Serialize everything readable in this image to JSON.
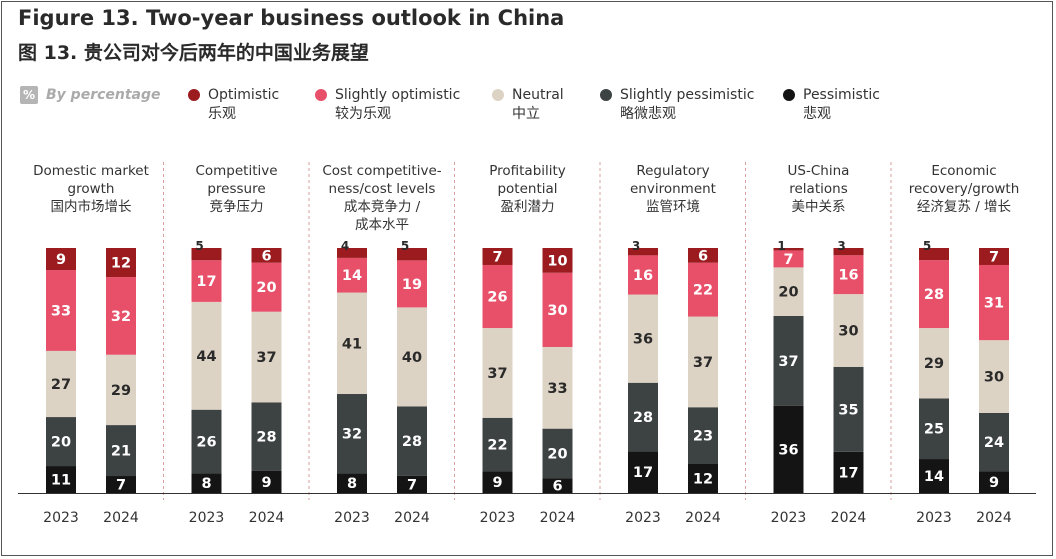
{
  "header": {
    "title": "Figure 13. Two-year business outlook in China",
    "subtitle": "图 13. 贵公司对今后两年的中国业务展望",
    "unit_badge": "%",
    "unit_label": "By percentage"
  },
  "legend": [
    {
      "name": "Optimistic",
      "name_cn": "乐观",
      "color": "#9b1b1f"
    },
    {
      "name": "Slightly optimistic",
      "name_cn": "较为乐观",
      "color": "#e8506a"
    },
    {
      "name": "Neutral",
      "name_cn": "中立",
      "color": "#ddd3c4"
    },
    {
      "name": "Slightly pessimistic",
      "name_cn": "略微悲观",
      "color": "#3d4243"
    },
    {
      "name": "Pessimistic",
      "name_cn": "悲观",
      "color": "#141414"
    }
  ],
  "chart_data": {
    "type": "bar",
    "stacked": true,
    "stack_order_bottom_to_top": [
      "Pessimistic",
      "Slightly pessimistic",
      "Neutral",
      "Slightly optimistic",
      "Optimistic"
    ],
    "groups": [
      {
        "label": [
          "Domestic market",
          "growth",
          "国内市场增长"
        ],
        "bars": [
          {
            "year": "2023",
            "values": {
              "Optimistic": 9,
              "Slightly optimistic": 33,
              "Neutral": 27,
              "Slightly pessimistic": 20,
              "Pessimistic": 11
            }
          },
          {
            "year": "2024",
            "values": {
              "Optimistic": 12,
              "Slightly optimistic": 32,
              "Neutral": 29,
              "Slightly pessimistic": 21,
              "Pessimistic": 7
            }
          }
        ]
      },
      {
        "label": [
          "Competitive",
          "pressure",
          "竞争压力"
        ],
        "bars": [
          {
            "year": "2023",
            "values": {
              "Optimistic": 5,
              "Slightly optimistic": 17,
              "Neutral": 44,
              "Slightly pessimistic": 26,
              "Pessimistic": 8
            }
          },
          {
            "year": "2024",
            "values": {
              "Optimistic": 6,
              "Slightly optimistic": 20,
              "Neutral": 37,
              "Slightly pessimistic": 28,
              "Pessimistic": 9
            }
          }
        ]
      },
      {
        "label": [
          "Cost competitive-",
          "ness/cost levels",
          "成本竞争力 /",
          "成本水平"
        ],
        "bars": [
          {
            "year": "2023",
            "values": {
              "Optimistic": 4,
              "Slightly optimistic": 14,
              "Neutral": 41,
              "Slightly pessimistic": 32,
              "Pessimistic": 8
            }
          },
          {
            "year": "2024",
            "values": {
              "Optimistic": 5,
              "Slightly optimistic": 19,
              "Neutral": 40,
              "Slightly pessimistic": 28,
              "Pessimistic": 7
            }
          }
        ]
      },
      {
        "label": [
          "Profitability",
          "potential",
          "盈利潜力"
        ],
        "bars": [
          {
            "year": "2023",
            "values": {
              "Optimistic": 7,
              "Slightly optimistic": 26,
              "Neutral": 37,
              "Slightly pessimistic": 22,
              "Pessimistic": 9
            }
          },
          {
            "year": "2024",
            "values": {
              "Optimistic": 10,
              "Slightly optimistic": 30,
              "Neutral": 33,
              "Slightly pessimistic": 20,
              "Pessimistic": 6
            }
          }
        ]
      },
      {
        "label": [
          "Regulatory",
          "environment",
          "监管环境"
        ],
        "bars": [
          {
            "year": "2023",
            "values": {
              "Optimistic": 3,
              "Slightly optimistic": 16,
              "Neutral": 36,
              "Slightly pessimistic": 28,
              "Pessimistic": 17
            }
          },
          {
            "year": "2024",
            "values": {
              "Optimistic": 6,
              "Slightly optimistic": 22,
              "Neutral": 37,
              "Slightly pessimistic": 23,
              "Pessimistic": 12
            }
          }
        ]
      },
      {
        "label": [
          "US-China",
          "relations",
          "美中关系"
        ],
        "bars": [
          {
            "year": "2023",
            "values": {
              "Optimistic": 1,
              "Slightly optimistic": 7,
              "Neutral": 20,
              "Slightly pessimistic": 37,
              "Pessimistic": 36
            }
          },
          {
            "year": "2024",
            "values": {
              "Optimistic": 3,
              "Slightly optimistic": 16,
              "Neutral": 30,
              "Slightly pessimistic": 35,
              "Pessimistic": 17
            }
          }
        ]
      },
      {
        "label": [
          "Economic",
          "recovery/growth",
          "经济复苏 / 增长"
        ],
        "bars": [
          {
            "year": "2023",
            "values": {
              "Optimistic": 5,
              "Slightly optimistic": 28,
              "Neutral": 29,
              "Slightly pessimistic": 25,
              "Pessimistic": 14
            }
          },
          {
            "year": "2024",
            "values": {
              "Optimistic": 7,
              "Slightly optimistic": 31,
              "Neutral": 30,
              "Slightly pessimistic": 24,
              "Pessimistic": 9
            }
          }
        ]
      }
    ],
    "grid": false,
    "legend_position": "top"
  }
}
